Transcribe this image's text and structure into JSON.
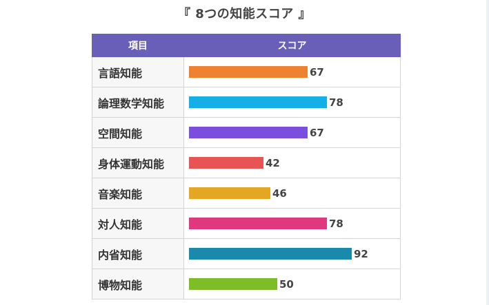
{
  "title": "『 8つの知能スコア 』",
  "table": {
    "header_item": "項目",
    "header_score": "スコア"
  },
  "chart_data": {
    "type": "bar",
    "title": "『 8つの知能スコア 』",
    "xlabel": "項目",
    "ylabel": "スコア",
    "ylim": [
      0,
      100
    ],
    "categories": [
      "言語知能",
      "論理数学知能",
      "空間知能",
      "身体運動知能",
      "音楽知能",
      "対人知能",
      "内省知能",
      "博物知能"
    ],
    "values": [
      67,
      78,
      67,
      42,
      46,
      78,
      92,
      50
    ],
    "colors": [
      "#ee8230",
      "#13afe6",
      "#7a4fdd",
      "#e85454",
      "#e3a723",
      "#e0387f",
      "#1a8aac",
      "#7cbd28"
    ]
  }
}
